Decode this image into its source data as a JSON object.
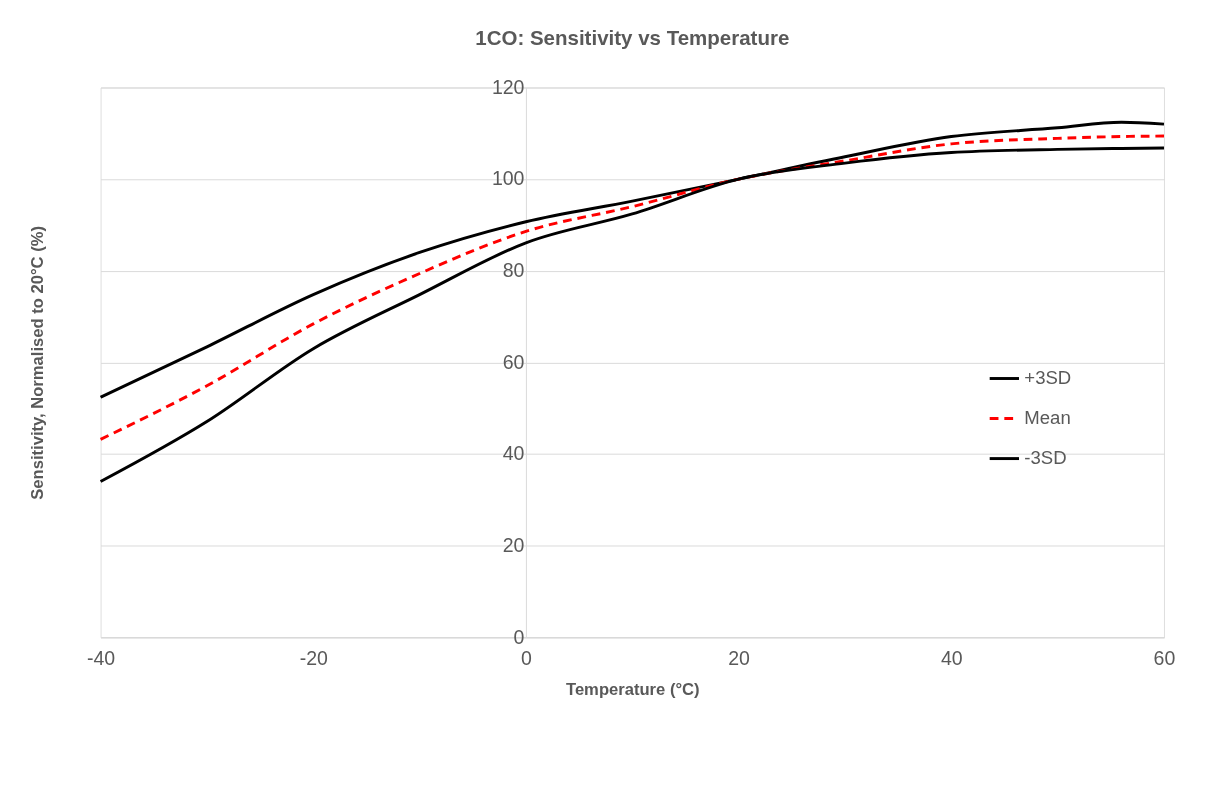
{
  "chart_data": {
    "type": "line",
    "title": "1CO: Sensitivity vs Temperature",
    "xlabel": "Temperature (°C)",
    "ylabel": "Sensitivity,  Normalised to 20°C (%)",
    "x": [
      -40,
      -30,
      -20,
      -10,
      0,
      10,
      20,
      30,
      40,
      50,
      56,
      60
    ],
    "series": [
      {
        "name": "+3SD",
        "color": "#000000",
        "line_style": "solid",
        "values": [
          52.4,
          63.4,
          74.8,
          84,
          90.7,
          95.2,
          100,
          104.9,
          109.3,
          111.2,
          112.4,
          112
        ]
      },
      {
        "name": "Mean",
        "color": "#ff0000",
        "line_style": "dashed",
        "values": [
          43.2,
          54.9,
          68.4,
          79.4,
          88.6,
          94,
          100,
          104,
          107.7,
          108.9,
          109.3,
          109.4
        ]
      },
      {
        "name": "-3SD",
        "color": "#000000",
        "line_style": "solid",
        "values": [
          34,
          47.1,
          63,
          74.8,
          86.1,
          92.4,
          100,
          103.5,
          105.8,
          106.5,
          106.7,
          106.8
        ]
      }
    ],
    "xlim": [
      -40,
      60
    ],
    "xticks": [
      -40,
      -20,
      0,
      20,
      40,
      60
    ],
    "ylim": [
      0,
      120
    ],
    "yticks": [
      0,
      20,
      40,
      60,
      80,
      100,
      120
    ],
    "grid": "y",
    "legend": "right",
    "marker": "none"
  }
}
